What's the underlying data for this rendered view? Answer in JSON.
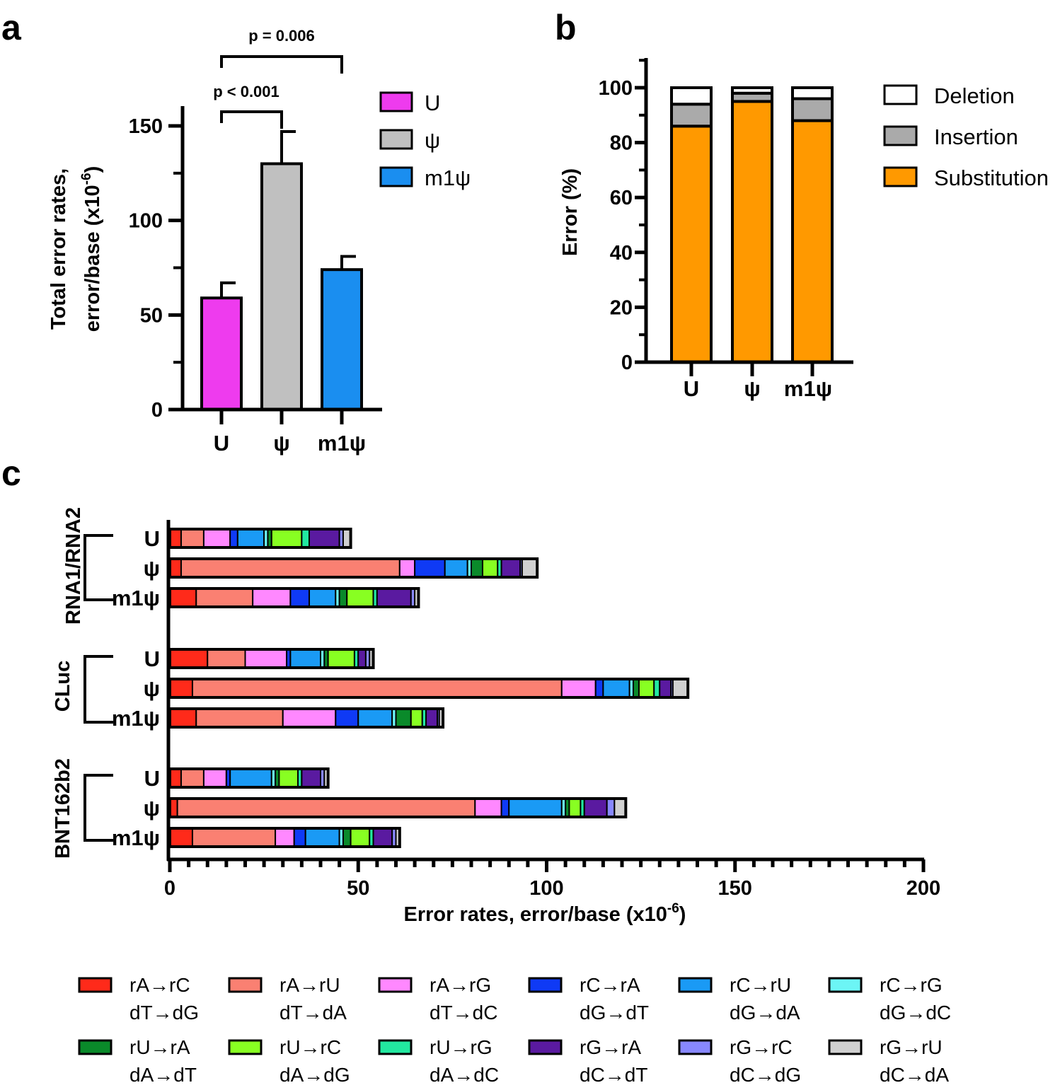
{
  "chart_data": [
    {
      "panel": "a",
      "type": "bar",
      "categories": [
        "U",
        "ψ",
        "m1ψ"
      ],
      "values": [
        59,
        130,
        74
      ],
      "errors": [
        8,
        17,
        7
      ],
      "colors": [
        "#ee3bee",
        "#c0c0c0",
        "#1a8ef0"
      ],
      "ylabel_line1": "Total error rates,",
      "ylabel_line2": "error/base (x10",
      "ylabel_exp": "-6",
      "ylabel_close": ")",
      "ylim": [
        0,
        150
      ],
      "yticks": [
        "0",
        "50",
        "100",
        "150"
      ],
      "legend": [
        "U",
        "ψ",
        "m1ψ"
      ],
      "comparisons": [
        {
          "from": 0,
          "to": 1,
          "label": "p < 0.001"
        },
        {
          "from": 0,
          "to": 2,
          "label": "p = 0.006"
        }
      ]
    },
    {
      "panel": "b",
      "type": "bar",
      "stacked": true,
      "categories": [
        "U",
        "ψ",
        "m1ψ"
      ],
      "series": [
        {
          "name": "Substitution",
          "color": "#ff9900",
          "values": [
            86,
            95,
            88
          ]
        },
        {
          "name": "Insertion",
          "color": "#aaaaaa",
          "values": [
            8,
            3,
            8
          ]
        },
        {
          "name": "Deletion",
          "color": "#ffffff",
          "values": [
            6,
            2,
            4
          ]
        }
      ],
      "legend": [
        "Deletion",
        "Insertion",
        "Substitution"
      ],
      "ylabel": "Error (%)",
      "ylim": [
        0,
        100
      ],
      "yticks": [
        "0",
        "20",
        "40",
        "60",
        "80",
        "100"
      ]
    },
    {
      "panel": "c",
      "type": "bar",
      "orientation": "horizontal",
      "stacked": true,
      "xlabel_main": "Error rates, error/base (x10",
      "xlabel_exp": "-6",
      "xlabel_close": ")",
      "xlim": [
        0,
        200
      ],
      "xticks": [
        "0",
        "50",
        "100",
        "150",
        "200"
      ],
      "groups": [
        "RNA1/RNA2",
        "CLuc",
        "BNT162b2"
      ],
      "row_labels": [
        "U",
        "ψ",
        "m1ψ"
      ],
      "types": [
        {
          "l1": "rA→rC",
          "l2": "dT→dG",
          "color": "#ff2a1a"
        },
        {
          "l1": "rA→rU",
          "l2": "dT→dA",
          "color": "#fa8072"
        },
        {
          "l1": "rA→rG",
          "l2": "dT→dC",
          "color": "#ff88ff"
        },
        {
          "l1": "rC→rA",
          "l2": "dG→dT",
          "color": "#0f3af5"
        },
        {
          "l1": "rC→rU",
          "l2": "dG→dA",
          "color": "#1a9af5"
        },
        {
          "l1": "rC→rG",
          "l2": "dG→dC",
          "color": "#6cf5f5"
        },
        {
          "l1": "rU→rA",
          "l2": "dA→dT",
          "color": "#0a8a2a"
        },
        {
          "l1": "rU→rC",
          "l2": "dA→dG",
          "color": "#88ff22"
        },
        {
          "l1": "rU→rG",
          "l2": "dA→dC",
          "color": "#22e8a0"
        },
        {
          "l1": "rG→rA",
          "l2": "dC→dT",
          "color": "#5a1aa0"
        },
        {
          "l1": "rG→rC",
          "l2": "dC→dG",
          "color": "#8888ff"
        },
        {
          "l1": "rG→rU",
          "l2": "dC→dA",
          "color": "#d0d0d0"
        }
      ],
      "rows": [
        {
          "group": 0,
          "label": "U",
          "values": [
            3,
            6,
            7,
            2,
            7,
            1,
            1,
            8,
            2,
            8,
            1,
            2
          ]
        },
        {
          "group": 0,
          "label": "ψ",
          "values": [
            3,
            58,
            4,
            8,
            6,
            1,
            3,
            4,
            1,
            5,
            0.5,
            4
          ]
        },
        {
          "group": 0,
          "label": "m1ψ",
          "values": [
            7,
            15,
            10,
            5,
            7,
            1,
            2,
            7,
            1,
            9,
            1,
            1
          ]
        },
        {
          "group": 1,
          "label": "U",
          "values": [
            10,
            10,
            11,
            1,
            8,
            1,
            1,
            7,
            1,
            2,
            1,
            1
          ]
        },
        {
          "group": 1,
          "label": "ψ",
          "values": [
            6,
            98,
            9,
            2,
            7,
            1,
            1.5,
            4,
            1.5,
            3,
            0.5,
            4
          ]
        },
        {
          "group": 1,
          "label": "m1ψ",
          "values": [
            7,
            23,
            14,
            6,
            9,
            1,
            4,
            3,
            1,
            3,
            0.5,
            1
          ]
        },
        {
          "group": 2,
          "label": "U",
          "values": [
            3,
            6,
            6,
            1,
            11,
            1,
            1,
            5,
            1,
            5,
            1,
            1
          ]
        },
        {
          "group": 2,
          "label": "ψ",
          "values": [
            2,
            79,
            7,
            2,
            14,
            1,
            1,
            3,
            1,
            6,
            2,
            3
          ]
        },
        {
          "group": 2,
          "label": "m1ψ",
          "values": [
            6,
            22,
            5,
            3,
            9,
            1,
            2,
            5,
            1,
            5,
            1,
            1
          ]
        }
      ]
    }
  ],
  "panels": {
    "a": "a",
    "b": "b",
    "c": "c"
  }
}
